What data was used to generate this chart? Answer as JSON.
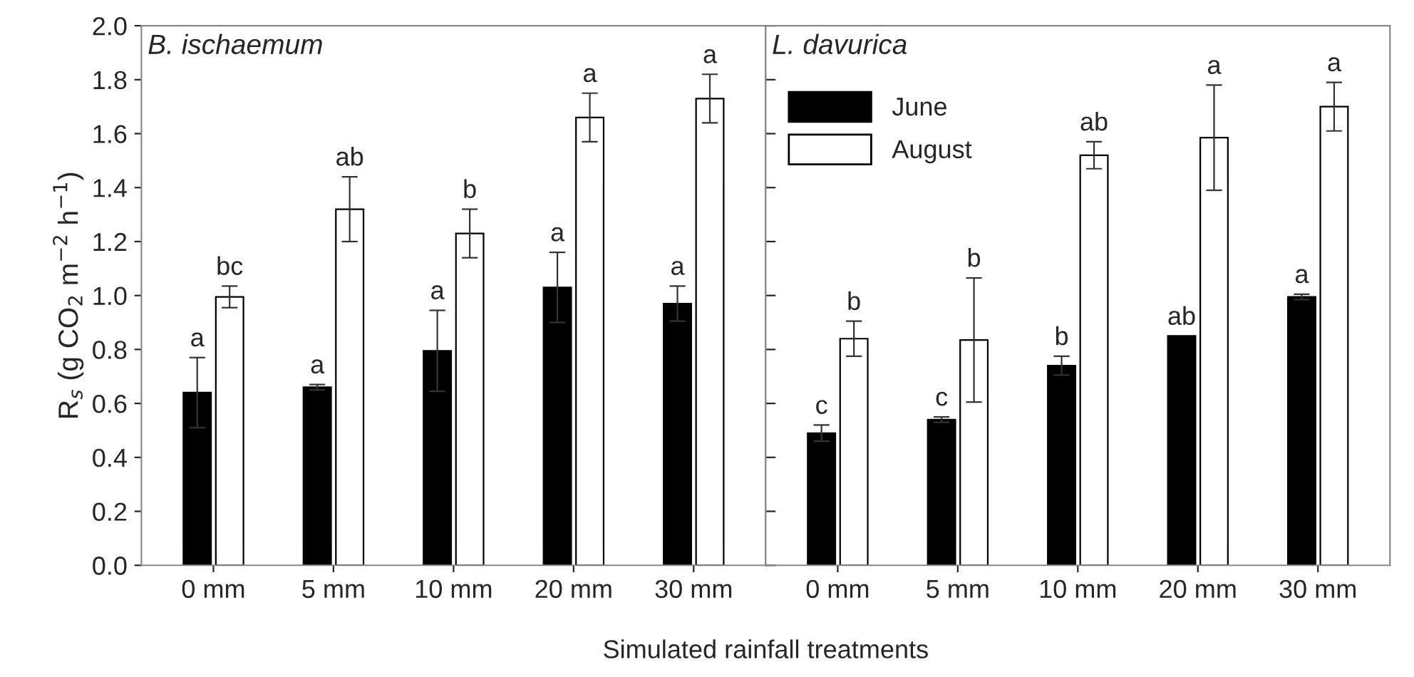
{
  "chart_data": [
    {
      "type": "bar",
      "title": "B. ischaemum",
      "xlabel": "Simulated rainfall treatments",
      "ylabel": "R$_{s}$ (g CO$_{2}$ m$^{−2}$ h$^{−1}$)",
      "categories": [
        "0 mm",
        "5 mm",
        "10 mm",
        "20 mm",
        "30 mm"
      ],
      "series": [
        {
          "color": "#000000",
          "values": [
            0.64,
            0.66,
            0.795,
            1.03,
            0.97
          ],
          "errors": [
            0.13,
            0.01,
            0.15,
            0.13,
            0.065
          ],
          "value_labels": [
            "a",
            "a",
            "a",
            "a",
            "a"
          ]
        },
        {
          "color": "#ffffff",
          "values": [
            0.995,
            1.32,
            1.23,
            1.66,
            1.73
          ],
          "errors": [
            0.04,
            0.12,
            0.09,
            0.09,
            0.09
          ],
          "value_labels": [
            "bc",
            "ab",
            "b",
            "a",
            "a"
          ]
        }
      ],
      "ylim": [
        0,
        2.0
      ],
      "yticks": [
        {
          "value": 0,
          "label": "0.0"
        },
        {
          "value": 0.2,
          "label": "0.2"
        },
        {
          "value": 0.4,
          "label": "0.4"
        },
        {
          "value": 0.6,
          "label": "0.6"
        },
        {
          "value": 0.8,
          "label": "0.8"
        },
        {
          "value": 1.0,
          "label": "1.0"
        },
        {
          "value": 1.2,
          "label": "1.2"
        },
        {
          "value": 1.4,
          "label": "1.4"
        },
        {
          "value": 1.6,
          "label": "1.6"
        },
        {
          "value": 1.8,
          "label": "1.8"
        },
        {
          "value": 2.0,
          "label": "2.0"
        }
      ],
      "grid": false,
      "legend": false
    },
    {
      "type": "bar",
      "title": "L. davurica",
      "categories": [
        "0 mm",
        "5 mm",
        "10 mm",
        "20 mm",
        "30 mm"
      ],
      "series": [
        {
          "name": "June",
          "color": "#000000",
          "values": [
            0.49,
            0.54,
            0.74,
            0.85,
            0.995
          ],
          "errors": [
            0.03,
            0.01,
            0.035,
            null,
            0.01
          ],
          "value_labels": [
            "c",
            "c",
            "b",
            "ab",
            "a"
          ]
        },
        {
          "name": "August",
          "color": "#ffffff",
          "values": [
            0.84,
            0.835,
            1.52,
            1.585,
            1.7
          ],
          "errors": [
            0.065,
            0.23,
            0.05,
            0.195,
            0.09
          ],
          "value_labels": [
            "b",
            "b",
            "ab",
            "a",
            "a"
          ]
        }
      ],
      "ylim": [
        0,
        2.0
      ],
      "yticks": [
        0,
        0.2,
        0.4,
        0.6,
        0.8,
        1.0,
        1.2,
        1.4,
        1.6,
        1.8,
        2.0
      ],
      "tick_labels": "x",
      "grid": false,
      "legend": "top left"
    }
  ]
}
